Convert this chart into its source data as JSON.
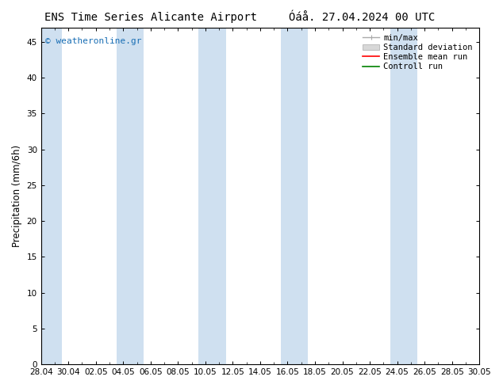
{
  "title_left": "ENS Time Series Alicante Airport",
  "title_right": "Óáå. 27.04.2024 00 UTC",
  "ylabel": "Precipitation (mm/6h)",
  "ylim": [
    0,
    47
  ],
  "yticks": [
    0,
    5,
    10,
    15,
    20,
    25,
    30,
    35,
    40,
    45
  ],
  "x_start": 0,
  "x_end": 32,
  "xtick_labels": [
    "28.04",
    "30.04",
    "02.05",
    "04.05",
    "06.05",
    "08.05",
    "10.05",
    "12.05",
    "14.05",
    "16.05",
    "18.05",
    "20.05",
    "22.05",
    "24.05",
    "26.05",
    "28.05",
    "30.05"
  ],
  "xtick_positions": [
    0,
    2,
    4,
    6,
    8,
    10,
    12,
    14,
    16,
    18,
    20,
    22,
    24,
    26,
    28,
    30,
    32
  ],
  "shaded_bands": [
    [
      -0.5,
      1.5
    ],
    [
      5.5,
      7.5
    ],
    [
      11.5,
      13.5
    ],
    [
      17.5,
      19.5
    ],
    [
      25.5,
      27.5
    ]
  ],
  "shade_color": "#cfe0f0",
  "background_color": "#ffffff",
  "plot_bg_color": "#ffffff",
  "legend_items": [
    {
      "label": "min/max"
    },
    {
      "label": "Standard deviation"
    },
    {
      "label": "Ensemble mean run"
    },
    {
      "label": "Controll run"
    }
  ],
  "watermark": "© weatheronline.gr",
  "watermark_color": "#1a6fb5",
  "title_fontsize": 10,
  "tick_fontsize": 7.5,
  "ylabel_fontsize": 8.5,
  "legend_fontsize": 7.5,
  "border_color": "#000000"
}
